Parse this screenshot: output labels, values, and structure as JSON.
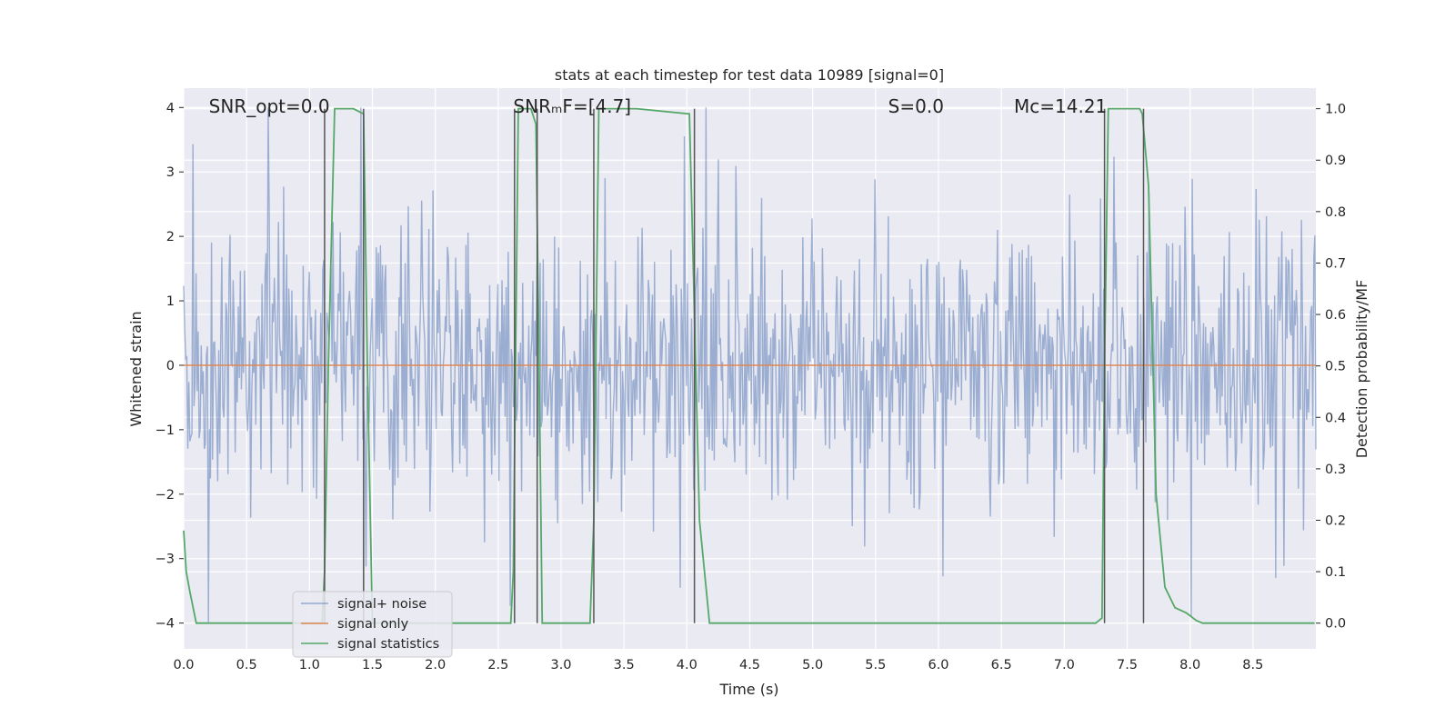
{
  "chart_data": {
    "type": "line",
    "title": "stats at each timestep for test data 10989 [signal=0]",
    "xlabel": "Time (s)",
    "ylabel": "Whitened strain",
    "y2label": "Detection probability/MF",
    "xlim": [
      0.0,
      9.0
    ],
    "ylim": [
      -4.4,
      4.3
    ],
    "y2lim": [
      -0.05,
      1.04
    ],
    "x_ticks": [
      0.0,
      0.5,
      1.0,
      1.5,
      2.0,
      2.5,
      3.0,
      3.5,
      4.0,
      4.5,
      5.0,
      5.5,
      6.0,
      6.5,
      7.0,
      7.5,
      8.0,
      8.5
    ],
    "x_tick_labels": [
      "0.0",
      "0.5",
      "1.0",
      "1.5",
      "2.0",
      "2.5",
      "3.0",
      "3.5",
      "4.0",
      "4.5",
      "5.0",
      "5.5",
      "6.0",
      "6.5",
      "7.0",
      "7.5",
      "8.0",
      "8.5"
    ],
    "y_ticks": [
      4,
      3,
      2,
      1,
      0,
      -1,
      -2,
      -3,
      -4
    ],
    "y_tick_labels": [
      "4",
      "3",
      "2",
      "1",
      "0",
      "−1",
      "−2",
      "−3",
      "−4"
    ],
    "y2_ticks": [
      1.0,
      0.9,
      0.8,
      0.7,
      0.6,
      0.5,
      0.4,
      0.3,
      0.2,
      0.1,
      0.0
    ],
    "y2_tick_labels": [
      "1.0",
      "0.9",
      "0.8",
      "0.7",
      "0.6",
      "0.5",
      "0.4",
      "0.3",
      "0.2",
      "0.1",
      "0.0"
    ],
    "grid": true,
    "legend_position": "lower-left",
    "annotations": [
      {
        "text": "SNR_opt=0.0",
        "x": 0.2
      },
      {
        "text": "SNRₘF=[4.7]",
        "x": 2.62
      },
      {
        "text": "S=0.0",
        "x": 5.6
      },
      {
        "text": "Mᴄ=14.21",
        "x": 6.6
      }
    ],
    "series": [
      {
        "name": "signal+ noise",
        "color": "#4c72b0",
        "axis": "left",
        "noise_amplitude_range": [
          -4.0,
          4.0
        ],
        "description_values": "dense random whitened strain noise"
      },
      {
        "name": "signal only",
        "color": "#dd8452",
        "axis": "left",
        "x": [
          0.0,
          9.0
        ],
        "y": [
          0.0,
          0.0
        ]
      },
      {
        "name": "signal statistics",
        "color": "#55a868",
        "axis": "right",
        "x": [
          0.0,
          0.02,
          0.05,
          0.1,
          0.2,
          0.5,
          0.8,
          1.0,
          1.1,
          1.12,
          1.15,
          1.2,
          1.35,
          1.43,
          1.46,
          1.5,
          1.8,
          2.2,
          2.6,
          2.62,
          2.66,
          2.7,
          2.76,
          2.8,
          2.82,
          2.85,
          3.0,
          3.23,
          3.26,
          3.3,
          3.6,
          4.02,
          4.05,
          4.1,
          4.18,
          4.5,
          5.0,
          6.0,
          7.0,
          7.25,
          7.3,
          7.32,
          7.35,
          7.6,
          7.62,
          7.67,
          7.73,
          7.8,
          7.88,
          7.97,
          8.05,
          8.1,
          8.5,
          8.99
        ],
        "y": [
          0.18,
          0.1,
          0.06,
          0.0,
          0.0,
          0.0,
          0.0,
          0.0,
          0.0,
          0.1,
          0.5,
          1.0,
          1.0,
          0.99,
          0.5,
          0.0,
          0.0,
          0.0,
          0.0,
          0.1,
          1.0,
          1.0,
          1.0,
          0.97,
          0.6,
          0.0,
          0.0,
          0.0,
          0.2,
          1.0,
          1.0,
          0.99,
          0.7,
          0.2,
          0.0,
          0.0,
          0.0,
          0.0,
          0.0,
          0.0,
          0.01,
          0.5,
          1.0,
          1.0,
          0.99,
          0.85,
          0.25,
          0.07,
          0.03,
          0.02,
          0.005,
          0.0,
          0.0,
          0.0
        ]
      }
    ],
    "vertical_markers": {
      "color": "#555555",
      "x": [
        1.12,
        1.43,
        2.63,
        2.81,
        3.26,
        4.06,
        7.32,
        7.63
      ]
    }
  }
}
